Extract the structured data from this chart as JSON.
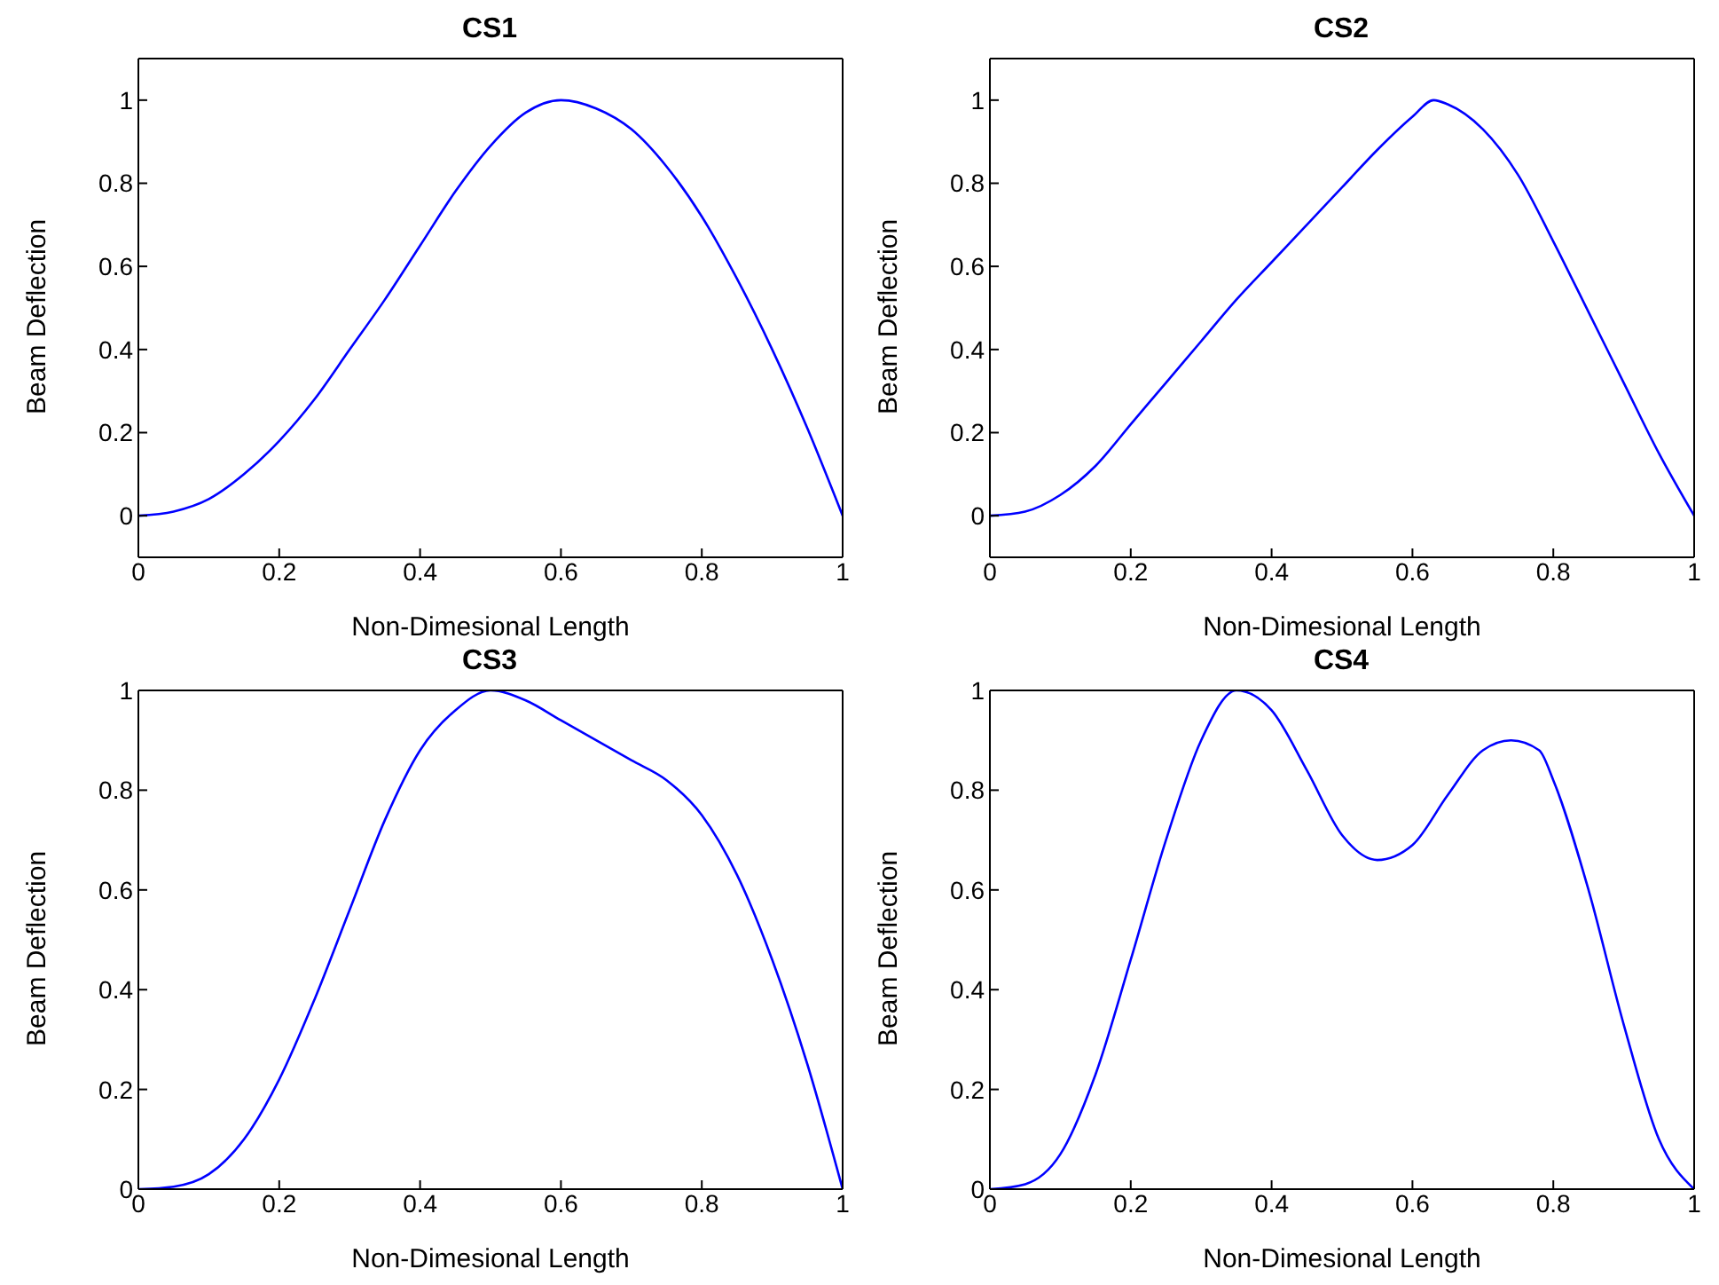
{
  "chart_data": [
    {
      "type": "line",
      "title": "CS1",
      "xlabel": "Non-Dimesional Length",
      "ylabel": "Beam Deflection",
      "x": [
        0,
        0.05,
        0.1,
        0.15,
        0.2,
        0.25,
        0.3,
        0.35,
        0.4,
        0.45,
        0.5,
        0.55,
        0.6,
        0.65,
        0.7,
        0.75,
        0.8,
        0.85,
        0.9,
        0.95,
        1
      ],
      "series": [
        {
          "color": "#0000ff",
          "values": [
            0,
            0.01,
            0.04,
            0.1,
            0.18,
            0.28,
            0.4,
            0.52,
            0.65,
            0.78,
            0.89,
            0.97,
            1.0,
            0.98,
            0.93,
            0.84,
            0.72,
            0.57,
            0.4,
            0.21,
            0
          ]
        }
      ],
      "xlim": [
        0,
        1
      ],
      "xticks": [
        0,
        0.2,
        0.4,
        0.6,
        0.8,
        1
      ],
      "ylim": [
        -0.1,
        1.1
      ],
      "yticks": [
        0,
        0.2,
        0.4,
        0.6,
        0.8,
        1
      ],
      "grid": false,
      "legend": false,
      "marker": "none",
      "line_style": "solid"
    },
    {
      "type": "line",
      "title": "CS2",
      "xlabel": "Non-Dimesional Length",
      "ylabel": "Beam Deflection",
      "x": [
        0,
        0.05,
        0.1,
        0.15,
        0.2,
        0.25,
        0.3,
        0.35,
        0.4,
        0.45,
        0.5,
        0.55,
        0.6,
        0.63,
        0.65,
        0.7,
        0.75,
        0.8,
        0.85,
        0.9,
        0.95,
        1
      ],
      "series": [
        {
          "color": "#0000ff",
          "values": [
            0,
            0.01,
            0.05,
            0.12,
            0.22,
            0.32,
            0.42,
            0.52,
            0.61,
            0.7,
            0.79,
            0.88,
            0.96,
            1.0,
            0.99,
            0.93,
            0.82,
            0.66,
            0.49,
            0.32,
            0.15,
            0
          ]
        }
      ],
      "xlim": [
        0,
        1
      ],
      "xticks": [
        0,
        0.2,
        0.4,
        0.6,
        0.8,
        1
      ],
      "ylim": [
        -0.1,
        1.1
      ],
      "yticks": [
        0,
        0.2,
        0.4,
        0.6,
        0.8,
        1
      ],
      "grid": false,
      "legend": false,
      "marker": "none",
      "line_style": "solid"
    },
    {
      "type": "line",
      "title": "CS3",
      "xlabel": "Non-Dimesional Length",
      "ylabel": "Beam Deflection",
      "x": [
        0,
        0.05,
        0.1,
        0.15,
        0.2,
        0.25,
        0.3,
        0.35,
        0.4,
        0.45,
        0.5,
        0.55,
        0.6,
        0.65,
        0.7,
        0.75,
        0.8,
        0.85,
        0.9,
        0.95,
        1
      ],
      "series": [
        {
          "color": "#0000ff",
          "values": [
            0,
            0.005,
            0.03,
            0.1,
            0.22,
            0.38,
            0.56,
            0.74,
            0.88,
            0.96,
            1.0,
            0.98,
            0.94,
            0.9,
            0.86,
            0.82,
            0.75,
            0.63,
            0.46,
            0.25,
            0
          ]
        }
      ],
      "xlim": [
        0,
        1
      ],
      "xticks": [
        0,
        0.2,
        0.4,
        0.6,
        0.8,
        1
      ],
      "ylim": [
        0,
        1
      ],
      "yticks": [
        0,
        0.2,
        0.4,
        0.6,
        0.8,
        1
      ],
      "grid": false,
      "legend": false,
      "marker": "none",
      "line_style": "solid"
    },
    {
      "type": "line",
      "title": "CS4",
      "xlabel": "Non-Dimesional Length",
      "ylabel": "Beam Deflection",
      "x": [
        0,
        0.05,
        0.1,
        0.15,
        0.2,
        0.25,
        0.3,
        0.35,
        0.4,
        0.45,
        0.5,
        0.55,
        0.6,
        0.65,
        0.7,
        0.74,
        0.78,
        0.8,
        0.85,
        0.9,
        0.95,
        1
      ],
      "series": [
        {
          "color": "#0000ff",
          "values": [
            0,
            0.01,
            0.07,
            0.23,
            0.46,
            0.7,
            0.9,
            1.0,
            0.96,
            0.84,
            0.71,
            0.66,
            0.69,
            0.79,
            0.88,
            0.9,
            0.88,
            0.82,
            0.6,
            0.33,
            0.1,
            0
          ]
        }
      ],
      "xlim": [
        0,
        1
      ],
      "xticks": [
        0,
        0.2,
        0.4,
        0.6,
        0.8,
        1
      ],
      "ylim": [
        0,
        1
      ],
      "yticks": [
        0,
        0.2,
        0.4,
        0.6,
        0.8,
        1
      ],
      "grid": false,
      "legend": false,
      "marker": "none",
      "line_style": "solid"
    }
  ]
}
